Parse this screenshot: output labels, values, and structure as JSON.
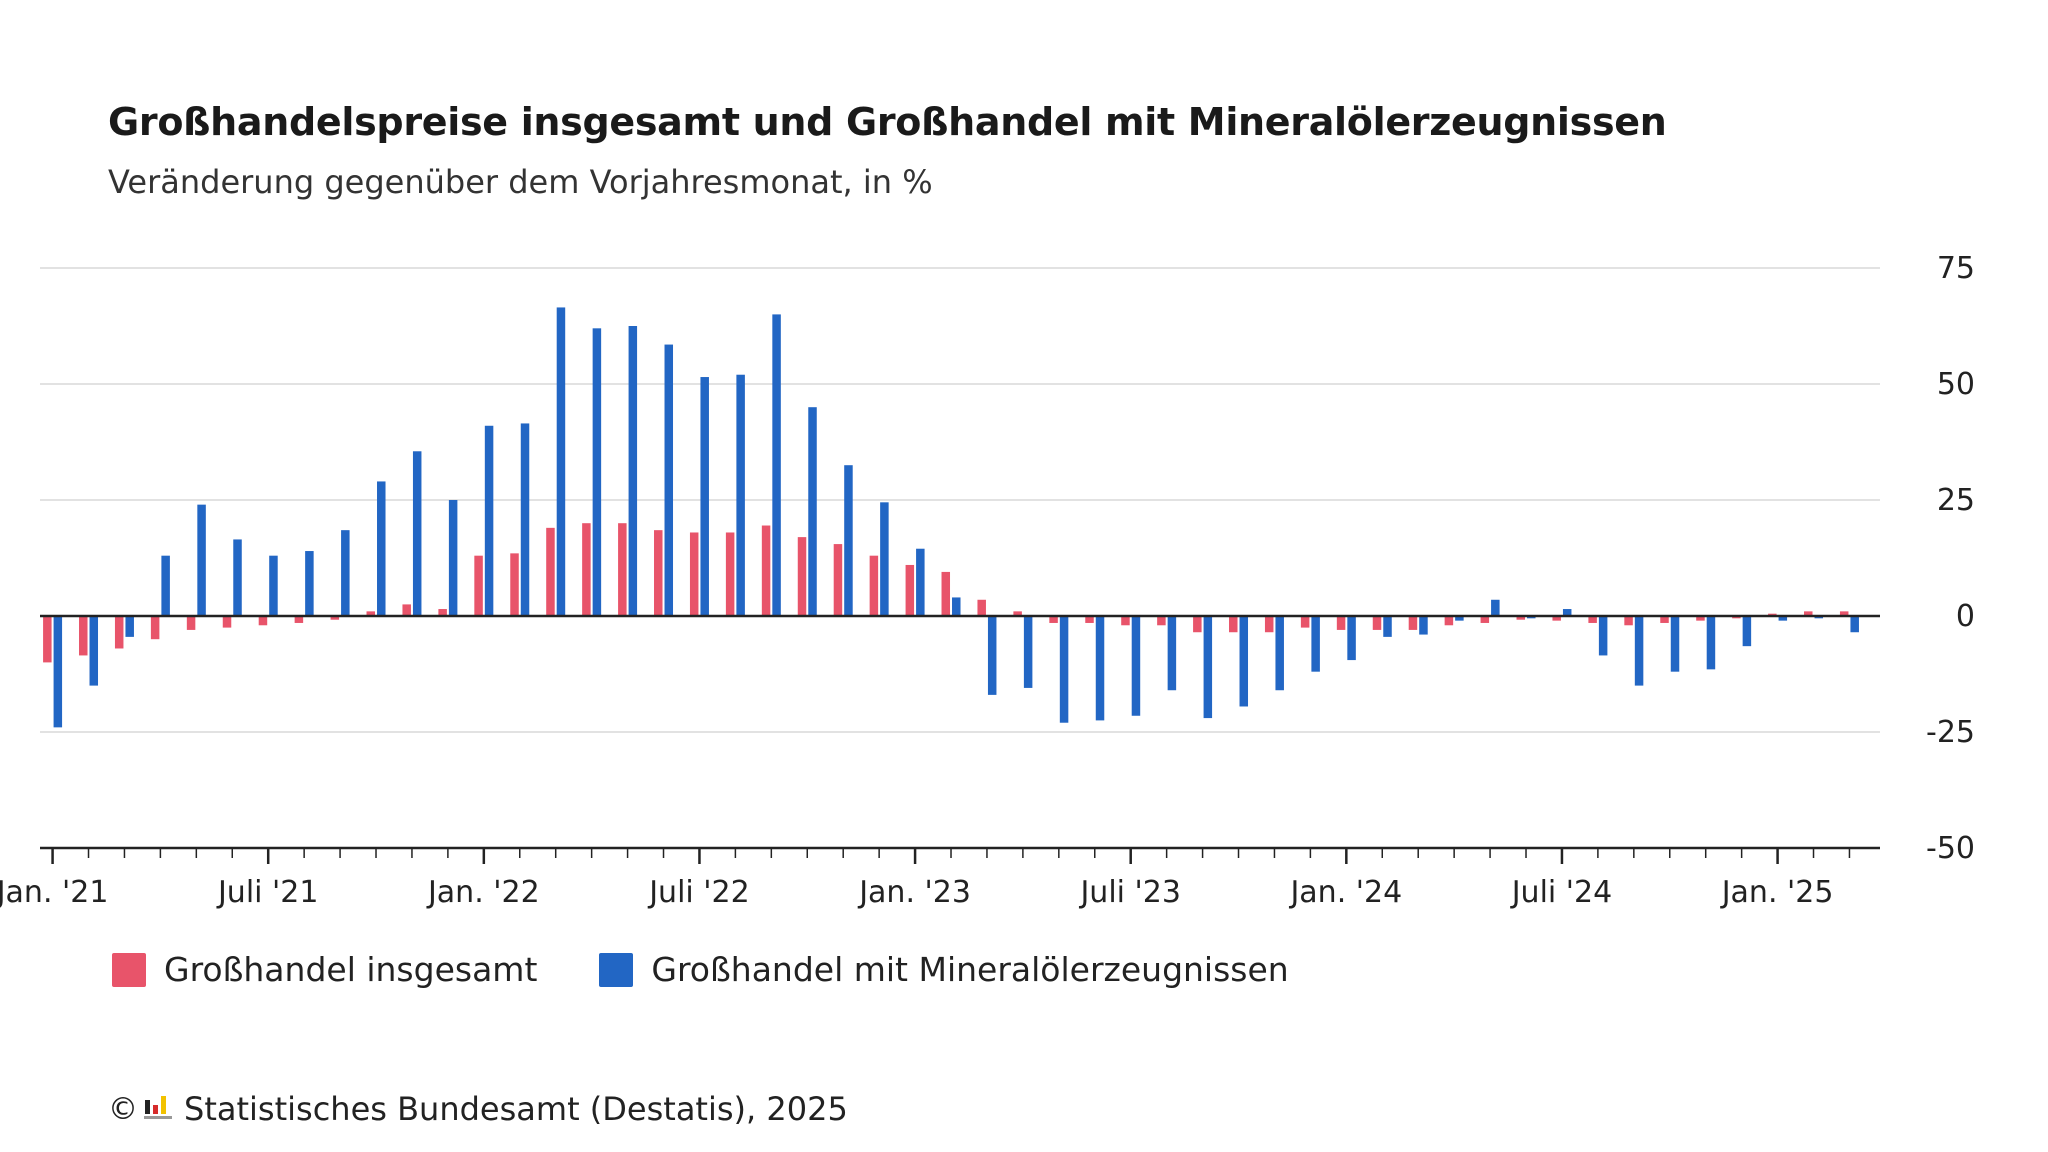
{
  "header": {
    "title": "Großhandelspreise insgesamt und Großhandel mit Mineralölerzeugnissen",
    "subtitle": "Veränderung gegenüber dem Vorjahresmonat, in %"
  },
  "legend": {
    "items": [
      {
        "label": "Großhandel insgesamt",
        "color": "#e8546a"
      },
      {
        "label": "Großhandel mit Mineralölerzeugnissen",
        "color": "#2266c4"
      }
    ]
  },
  "footer": {
    "copyright_symbol": "©",
    "source": "Statistisches Bundesamt (Destatis), 2025",
    "logo_icon": "destatis-logo-icon"
  },
  "chart_data": {
    "type": "bar",
    "categories": [
      "2021-01",
      "2021-02",
      "2021-03",
      "2021-04",
      "2021-05",
      "2021-06",
      "2021-07",
      "2021-08",
      "2021-09",
      "2021-10",
      "2021-11",
      "2021-12",
      "2022-01",
      "2022-02",
      "2022-03",
      "2022-04",
      "2022-05",
      "2022-06",
      "2022-07",
      "2022-08",
      "2022-09",
      "2022-10",
      "2022-11",
      "2022-12",
      "2023-01",
      "2023-02",
      "2023-03",
      "2023-04",
      "2023-05",
      "2023-06",
      "2023-07",
      "2023-08",
      "2023-09",
      "2023-10",
      "2023-11",
      "2023-12",
      "2024-01",
      "2024-02",
      "2024-03",
      "2024-04",
      "2024-05",
      "2024-06",
      "2024-07",
      "2024-08",
      "2024-09",
      "2024-10",
      "2024-11",
      "2024-12",
      "2025-01",
      "2025-02",
      "2025-03"
    ],
    "x_tick_labels": [
      "Jan. '21",
      "Juli '21",
      "Jan. '22",
      "Juli '22",
      "Jan. '23",
      "Juli '23",
      "Jan. '24",
      "Juli '24",
      "Jan. '25"
    ],
    "x_tick_label_positions": [
      0,
      6,
      12,
      18,
      24,
      30,
      36,
      42,
      48
    ],
    "series": [
      {
        "name": "Großhandel insgesamt",
        "color": "#e8546a",
        "values": [
          -10,
          -8.5,
          -7,
          -5,
          -3,
          -2.5,
          -2,
          -1.5,
          -0.8,
          1,
          2.5,
          1.5,
          13,
          13.5,
          19,
          20,
          20,
          18.5,
          18,
          18,
          19.5,
          17,
          15.5,
          13,
          11,
          9.5,
          3.5,
          1,
          -1.5,
          -1.5,
          -2,
          -2,
          -3.5,
          -3.5,
          -3.5,
          -2.5,
          -3,
          -3,
          -3,
          -2,
          -1.5,
          -0.8,
          -1,
          -1.5,
          -2,
          -1.5,
          -1,
          -0.5,
          0.5,
          1,
          1
        ]
      },
      {
        "name": "Großhandel mit Mineralölerzeugnissen",
        "color": "#2266c4",
        "values": [
          -24,
          -15,
          -4.5,
          13,
          24,
          16.5,
          13,
          14,
          18.5,
          29,
          35.5,
          25,
          41,
          41.5,
          66.5,
          62,
          62.5,
          58.5,
          51.5,
          52,
          65,
          45,
          32.5,
          24.5,
          14.5,
          4,
          -17,
          -15.5,
          -23,
          -22.5,
          -21.5,
          -16,
          -22,
          -19.5,
          -16,
          -12,
          -9.5,
          -4.5,
          -4,
          -1,
          3.5,
          -0.5,
          1.5,
          -8.5,
          -15,
          -12,
          -11.5,
          -6.5,
          -1,
          -0.5,
          -3.5
        ]
      }
    ],
    "y_ticks": [
      75,
      50,
      25,
      0,
      -25,
      -50
    ],
    "ylim": [
      -50,
      75
    ],
    "grid": true,
    "y_axis_position": "right",
    "legend_position": "bottom-left"
  }
}
